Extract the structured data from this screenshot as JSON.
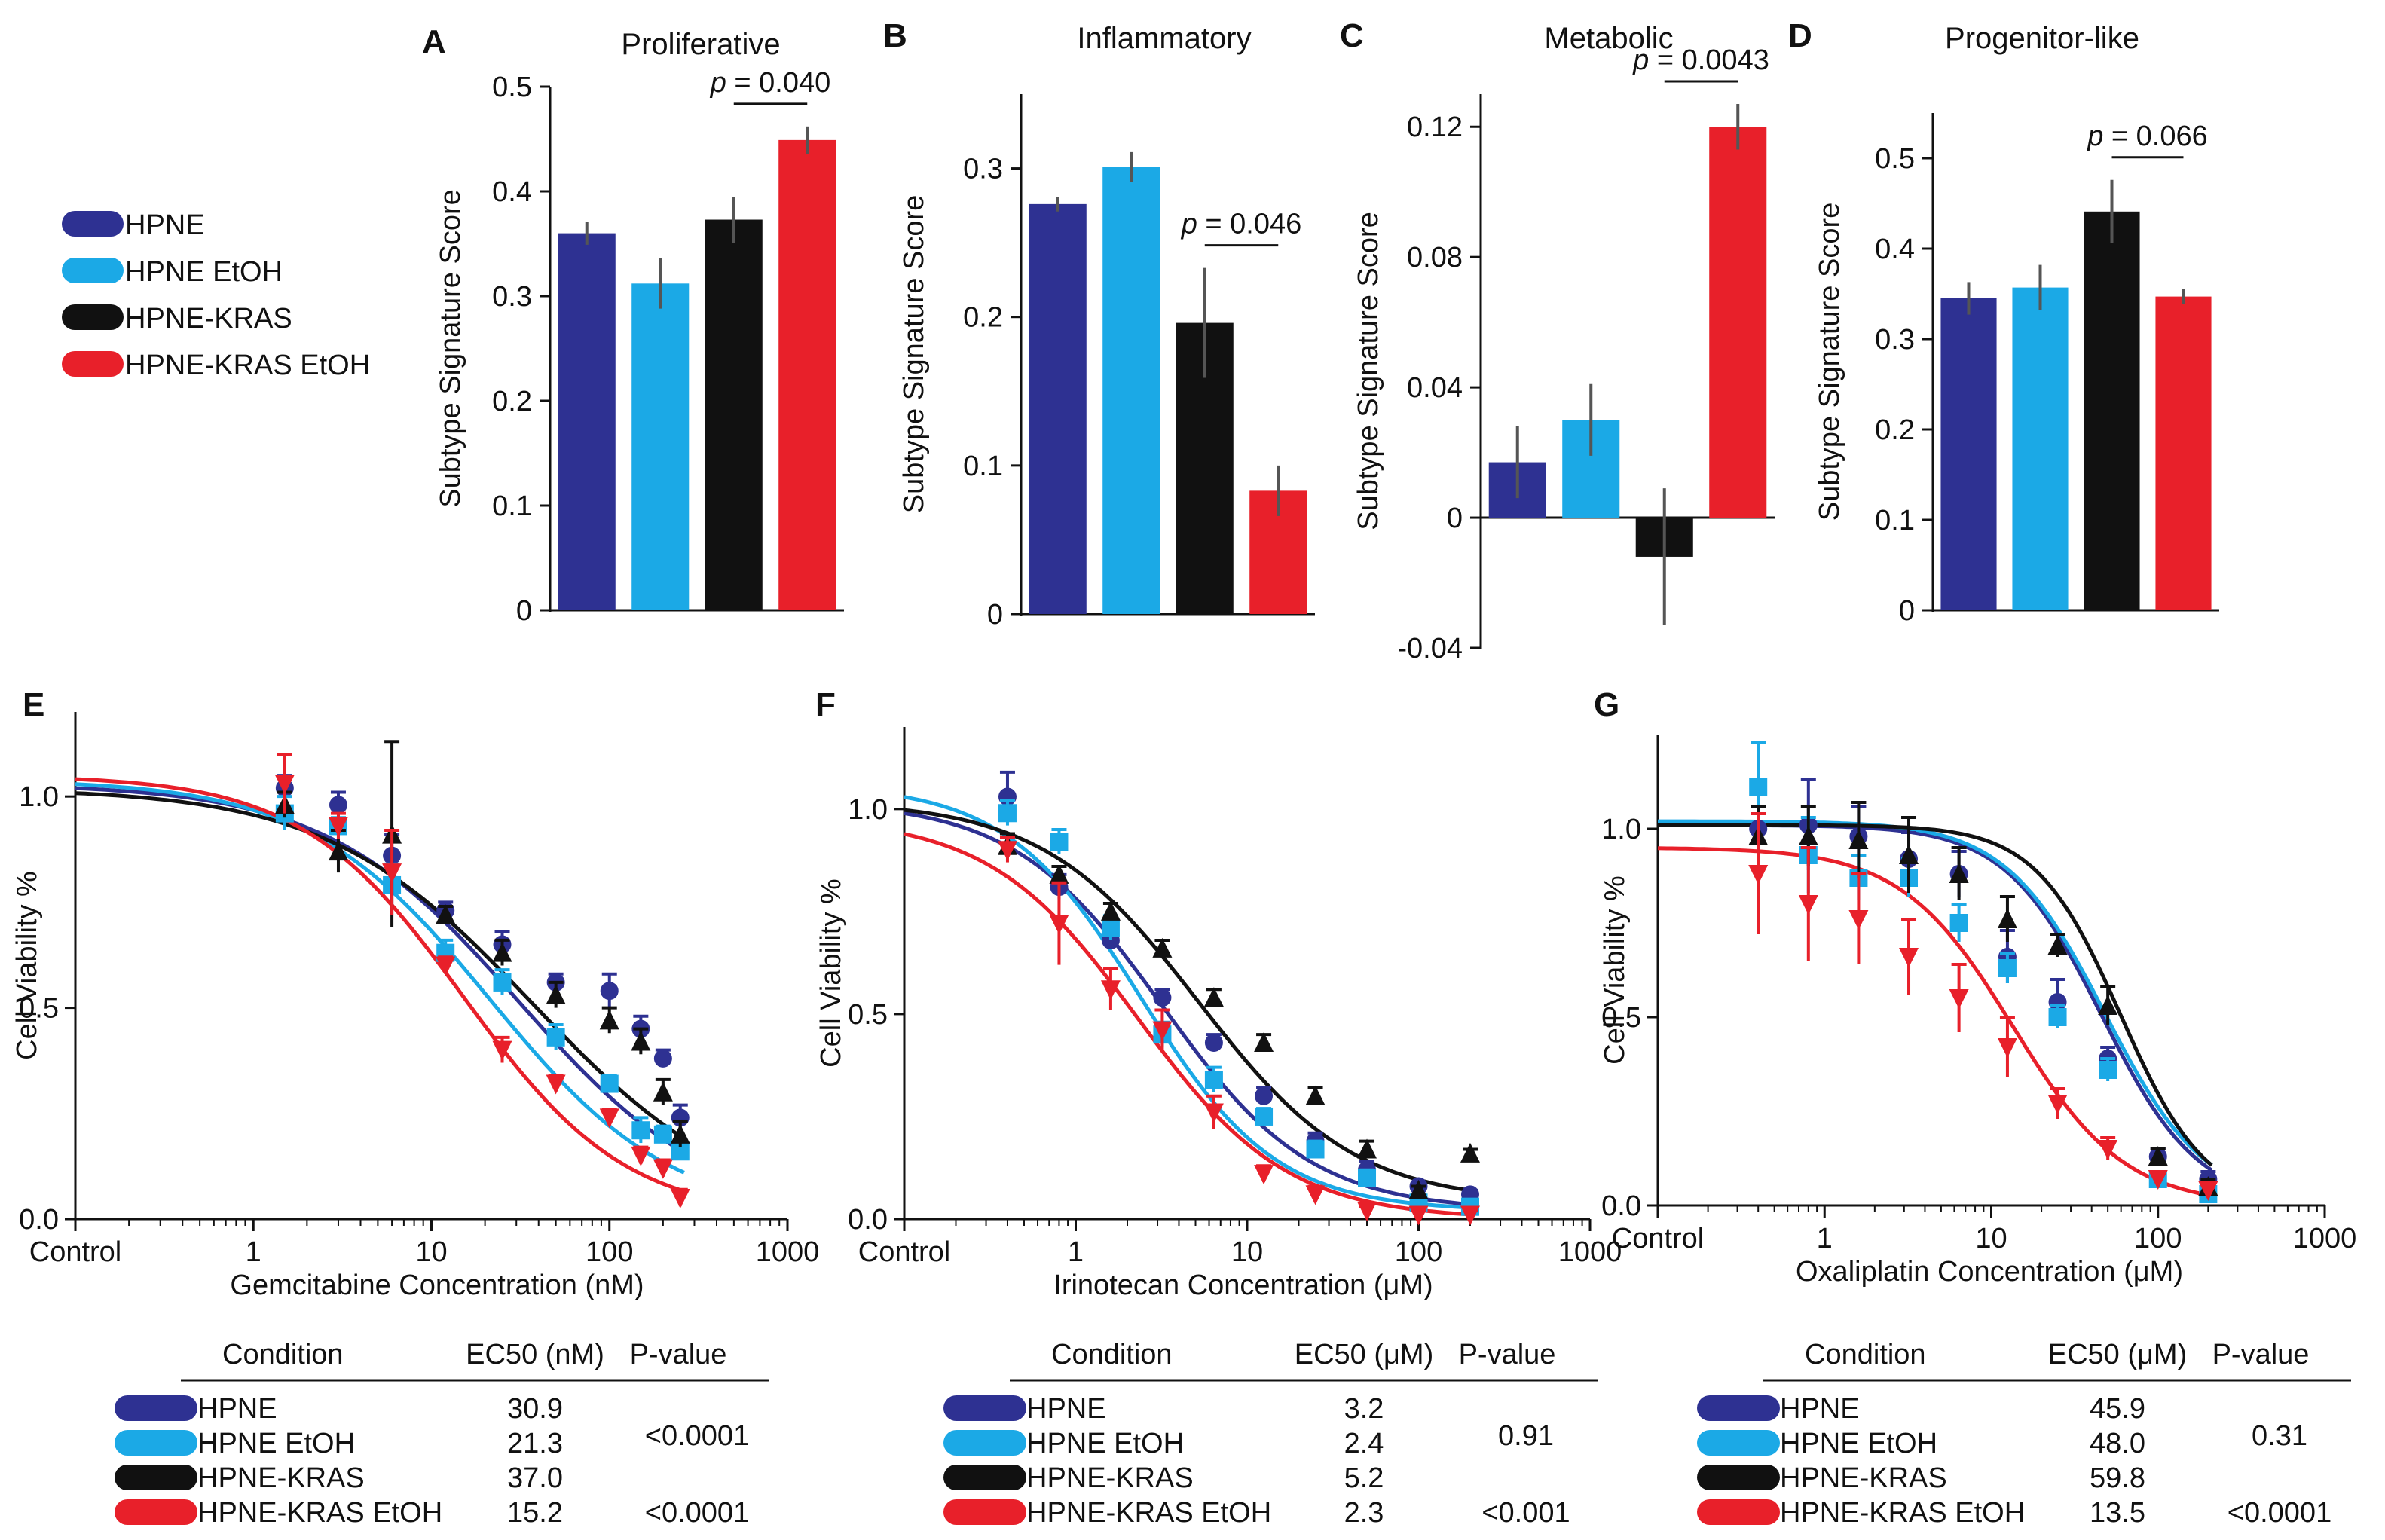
{
  "colors": {
    "HPNE": "#2e3192",
    "HPNE EtOH": "#1ba9e6",
    "HPNE-KRAS": "#111111",
    "HPNE-KRAS EtOH": "#e8202a"
  },
  "legend": [
    "HPNE",
    "HPNE EtOH",
    "HPNE-KRAS",
    "HPNE-KRAS EtOH"
  ],
  "chart_data": [
    {
      "panel": "A",
      "type": "bar",
      "title": "Proliferative",
      "ylabel": "Subtype Signature Score",
      "categories": [
        "HPNE",
        "HPNE EtOH",
        "HPNE-KRAS",
        "HPNE-KRAS EtOH"
      ],
      "values": [
        0.36,
        0.312,
        0.373,
        0.449
      ],
      "errors": [
        0.011,
        0.024,
        0.022,
        0.013
      ],
      "ylim": [
        0,
        0.5
      ],
      "yticks": [
        "0",
        "0.1",
        "0.2",
        "0.3",
        "0.4",
        "0.5"
      ],
      "annotation": {
        "p": "p",
        "text": " = 0.040",
        "between": [
          2,
          3
        ]
      }
    },
    {
      "panel": "B",
      "type": "bar",
      "title": "Inflammatory",
      "ylabel": "Subtype Signature Score",
      "categories": [
        "HPNE",
        "HPNE EtOH",
        "HPNE-KRAS",
        "HPNE-KRAS EtOH"
      ],
      "values": [
        0.276,
        0.301,
        0.196,
        0.083
      ],
      "errors": [
        0.005,
        0.01,
        0.037,
        0.017
      ],
      "ylim": [
        0,
        0.35
      ],
      "yticks": [
        "0",
        "0.1",
        "0.2",
        "0.3"
      ],
      "annotation": {
        "p": "p",
        "text": " = 0.046",
        "between": [
          2,
          3
        ]
      }
    },
    {
      "panel": "C",
      "type": "bar",
      "title": "Metabolic",
      "ylabel": "Subtype Signature Score",
      "categories": [
        "HPNE",
        "HPNE EtOH",
        "HPNE-KRAS",
        "HPNE-KRAS EtOH"
      ],
      "values": [
        0.017,
        0.03,
        -0.012,
        0.12
      ],
      "errors": [
        0.011,
        0.011,
        0.021,
        0.007
      ],
      "ylim": [
        -0.04,
        0.13
      ],
      "yticks": [
        "-0.04",
        "0",
        "0.04",
        "0.08",
        "0.12"
      ],
      "annotation": {
        "p": "p",
        "text": " = 0.0043",
        "between": [
          2,
          3
        ]
      }
    },
    {
      "panel": "D",
      "type": "bar",
      "title": "Progenitor-like",
      "ylabel": "Subtype Signature Score",
      "categories": [
        "HPNE",
        "HPNE EtOH",
        "HPNE-KRAS",
        "HPNE-KRAS EtOH"
      ],
      "values": [
        0.345,
        0.357,
        0.441,
        0.347
      ],
      "errors": [
        0.018,
        0.025,
        0.035,
        0.008
      ],
      "ylim": [
        0,
        0.55
      ],
      "yticks": [
        "0",
        "0.1",
        "0.2",
        "0.3",
        "0.4",
        "0.5"
      ],
      "annotation": {
        "p": "p",
        "text": " = 0.066",
        "between": [
          2,
          3
        ]
      }
    },
    {
      "panel": "E",
      "type": "scatter",
      "subtype": "dose-response",
      "xlabel": "Gemcitabine Concentration (nM)",
      "ylabel": "Cell Viability %",
      "xticks": [
        "Control",
        "1",
        "10",
        "100",
        "1000"
      ],
      "yticks": [
        "0.0",
        "0.5",
        "1.0"
      ],
      "ylim": [
        0,
        1.2
      ],
      "x": [
        1.5,
        3,
        6,
        12,
        25,
        50,
        100,
        150,
        200,
        250
      ],
      "series": [
        {
          "name": "HPNE",
          "marker": "circle",
          "ec50": 30.9,
          "top": 1.03,
          "bottom": 0,
          "hill": 0.8,
          "values": [
            1.02,
            0.98,
            0.86,
            0.73,
            0.65,
            0.56,
            0.54,
            0.45,
            0.38,
            0.24
          ],
          "errors": [
            0.03,
            0.03,
            0.05,
            0.02,
            0.03,
            0.02,
            0.04,
            0.03,
            0.02,
            0.03
          ]
        },
        {
          "name": "HPNE EtOH",
          "marker": "square",
          "ec50": 21.3,
          "top": 1.04,
          "bottom": 0,
          "hill": 0.85,
          "values": [
            0.96,
            0.93,
            0.79,
            0.63,
            0.56,
            0.43,
            0.32,
            0.21,
            0.2,
            0.16
          ],
          "errors": [
            0.04,
            0.02,
            0.05,
            0.03,
            0.03,
            0.03,
            0.02,
            0.03,
            0.02,
            0.02
          ]
        },
        {
          "name": "HPNE-KRAS",
          "marker": "triangle-up",
          "ec50": 37.0,
          "top": 1.02,
          "bottom": 0,
          "hill": 0.75,
          "values": [
            0.98,
            0.87,
            0.91,
            0.72,
            0.63,
            0.53,
            0.47,
            0.42,
            0.3,
            0.2
          ],
          "errors": [
            0.03,
            0.05,
            0.22,
            0.02,
            0.03,
            0.03,
            0.03,
            0.03,
            0.03,
            0.03
          ]
        },
        {
          "name": "HPNE-KRAS EtOH",
          "marker": "triangle-down",
          "ec50": 15.2,
          "top": 1.05,
          "bottom": 0,
          "hill": 0.95,
          "values": [
            1.03,
            0.93,
            0.82,
            0.6,
            0.4,
            0.32,
            0.24,
            0.15,
            0.12,
            0.05
          ],
          "errors": [
            0.07,
            0.03,
            0.1,
            0.02,
            0.03,
            0.02,
            0.02,
            0.02,
            0.02,
            0.02
          ]
        }
      ],
      "table": {
        "headers": [
          "Condition",
          "EC50 (nM)",
          "P-value"
        ],
        "rows": [
          [
            "HPNE",
            "30.9",
            ""
          ],
          [
            "HPNE EtOH",
            "21.3",
            "<0.0001"
          ],
          [
            "HPNE-KRAS",
            "37.0",
            ""
          ],
          [
            "HPNE-KRAS EtOH",
            "15.2",
            "<0.0001"
          ]
        ]
      }
    },
    {
      "panel": "F",
      "type": "scatter",
      "subtype": "dose-response",
      "xlabel": "Irinotecan Concentration (μM)",
      "ylabel": "Cell Viability %",
      "xticks": [
        "Control",
        "1",
        "10",
        "100",
        "1000"
      ],
      "yticks": [
        "0.0",
        "0.5",
        "1.0"
      ],
      "ylim": [
        0,
        1.2
      ],
      "x": [
        0.4,
        0.8,
        1.6,
        3.2,
        6.4,
        12.5,
        25,
        50,
        100,
        200
      ],
      "series": [
        {
          "name": "HPNE",
          "marker": "circle",
          "ec50": 3.2,
          "top": 1.02,
          "bottom": 0.02,
          "hill": 1.0,
          "values": [
            1.03,
            0.81,
            0.68,
            0.54,
            0.43,
            0.3,
            0.19,
            0.12,
            0.08,
            0.06
          ],
          "errors": [
            0.06,
            0.03,
            0.02,
            0.02,
            0.02,
            0.02,
            0.02,
            0.02,
            0.01,
            0.01
          ]
        },
        {
          "name": "HPNE EtOH",
          "marker": "square",
          "ec50": 2.4,
          "top": 1.06,
          "bottom": 0.02,
          "hill": 1.1,
          "values": [
            0.99,
            0.92,
            0.71,
            0.45,
            0.34,
            0.25,
            0.17,
            0.1,
            0.04,
            0.03
          ],
          "errors": [
            0.03,
            0.03,
            0.03,
            0.03,
            0.03,
            0.02,
            0.02,
            0.02,
            0.01,
            0.01
          ]
        },
        {
          "name": "HPNE-KRAS",
          "marker": "triangle-up",
          "ec50": 5.2,
          "top": 1.02,
          "bottom": 0.04,
          "hill": 0.95,
          "values": [
            0.91,
            0.84,
            0.75,
            0.66,
            0.54,
            0.43,
            0.3,
            0.17,
            0.07,
            0.16
          ],
          "errors": [
            0.03,
            0.02,
            0.02,
            0.02,
            0.02,
            0.02,
            0.02,
            0.02,
            0.01,
            0.01
          ]
        },
        {
          "name": "HPNE-KRAS EtOH",
          "marker": "triangle-down",
          "ec50": 2.3,
          "top": 0.98,
          "bottom": 0,
          "hill": 1.0,
          "values": [
            0.9,
            0.72,
            0.56,
            0.46,
            0.26,
            0.11,
            0.06,
            0.02,
            0.01,
            0.01
          ],
          "errors": [
            0.03,
            0.1,
            0.05,
            0.05,
            0.04,
            0.02,
            0.02,
            0.01,
            0.01,
            0.01
          ]
        }
      ],
      "table": {
        "headers": [
          "Condition",
          "EC50 (μM)",
          "P-value"
        ],
        "rows": [
          [
            "HPNE",
            "3.2",
            ""
          ],
          [
            "HPNE EtOH",
            "2.4",
            "0.91"
          ],
          [
            "HPNE-KRAS",
            "5.2",
            ""
          ],
          [
            "HPNE-KRAS EtOH",
            "2.3",
            "<0.001"
          ]
        ]
      }
    },
    {
      "panel": "G",
      "type": "scatter",
      "subtype": "dose-response",
      "xlabel": "Oxaliplatin Concentration (μM)",
      "ylabel": "Cell Viability %",
      "xticks": [
        "Control",
        "1",
        "10",
        "100",
        "1000"
      ],
      "yticks": [
        "0.0",
        "0.5",
        "1.0"
      ],
      "ylim": [
        0,
        1.25
      ],
      "x": [
        0.4,
        0.8,
        1.6,
        3.2,
        6.4,
        12.5,
        25,
        50,
        100,
        200
      ],
      "series": [
        {
          "name": "HPNE",
          "marker": "circle",
          "ec50": 45.9,
          "top": 1.01,
          "bottom": 0,
          "hill": 1.5,
          "values": [
            1.0,
            1.01,
            0.98,
            0.92,
            0.88,
            0.66,
            0.54,
            0.39,
            0.13,
            0.07
          ],
          "errors": [
            0.1,
            0.12,
            0.08,
            0.07,
            0.06,
            0.07,
            0.06,
            0.03,
            0.02,
            0.02
          ]
        },
        {
          "name": "HPNE EtOH",
          "marker": "square",
          "ec50": 48.0,
          "top": 1.02,
          "bottom": 0,
          "hill": 1.45,
          "values": [
            1.11,
            0.93,
            0.87,
            0.87,
            0.75,
            0.63,
            0.5,
            0.36,
            0.07,
            0.03
          ],
          "errors": [
            0.12,
            0.1,
            0.06,
            0.05,
            0.05,
            0.04,
            0.03,
            0.03,
            0.02,
            0.02
          ]
        },
        {
          "name": "HPNE-KRAS",
          "marker": "triangle-up",
          "ec50": 59.8,
          "top": 1.01,
          "bottom": 0,
          "hill": 1.7,
          "values": [
            0.98,
            0.98,
            0.97,
            0.93,
            0.88,
            0.76,
            0.69,
            0.53,
            0.13,
            0.05
          ],
          "errors": [
            0.08,
            0.08,
            0.1,
            0.1,
            0.07,
            0.06,
            0.03,
            0.05,
            0.02,
            0.02
          ]
        },
        {
          "name": "HPNE-KRAS EtOH",
          "marker": "triangle-down",
          "ec50": 13.5,
          "top": 0.95,
          "bottom": 0,
          "hill": 1.3,
          "values": [
            0.88,
            0.8,
            0.76,
            0.66,
            0.55,
            0.42,
            0.27,
            0.15,
            0.07,
            0.04
          ],
          "errors": [
            0.16,
            0.15,
            0.12,
            0.1,
            0.09,
            0.08,
            0.04,
            0.03,
            0.02,
            0.02
          ]
        }
      ],
      "table": {
        "headers": [
          "Condition",
          "EC50 (μM)",
          "P-value"
        ],
        "rows": [
          [
            "HPNE",
            "45.9",
            ""
          ],
          [
            "HPNE EtOH",
            "48.0",
            "0.31"
          ],
          [
            "HPNE-KRAS",
            "59.8",
            ""
          ],
          [
            "HPNE-KRAS EtOH",
            "13.5",
            "<0.0001"
          ]
        ]
      }
    }
  ]
}
